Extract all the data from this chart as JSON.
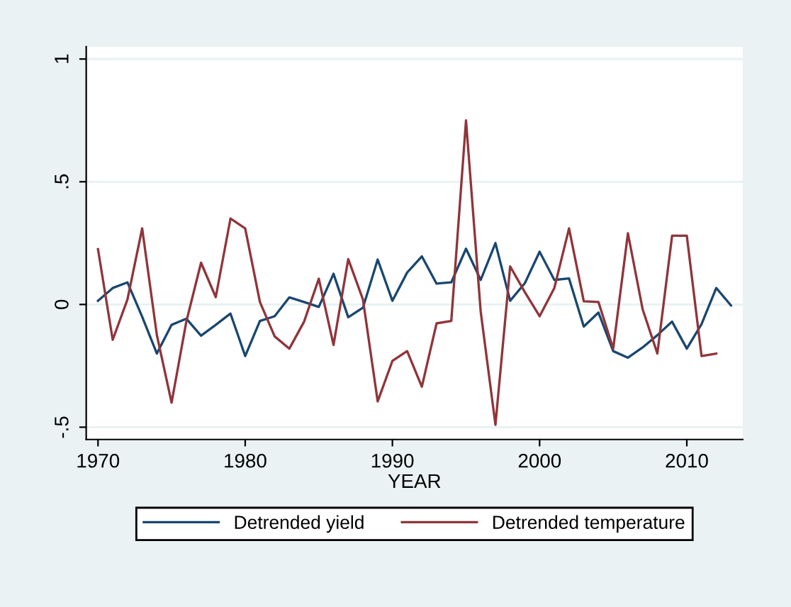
{
  "chart_data": {
    "type": "line",
    "xlabel": "YEAR",
    "x": [
      1970,
      1971,
      1972,
      1973,
      1974,
      1975,
      1976,
      1977,
      1978,
      1979,
      1980,
      1981,
      1982,
      1983,
      1984,
      1985,
      1986,
      1987,
      1988,
      1989,
      1990,
      1991,
      1992,
      1993,
      1994,
      1995,
      1996,
      1997,
      1998,
      1999,
      2000,
      2001,
      2002,
      2003,
      2004,
      2005,
      2006,
      2007,
      2008,
      2009,
      2010,
      2011,
      2012,
      2013
    ],
    "series": [
      {
        "name": "Detrended yield",
        "color": "#1a476f",
        "values": [
          0.015,
          0.067,
          0.09,
          -0.05,
          -0.2,
          -0.083,
          -0.058,
          -0.127,
          -0.083,
          -0.037,
          -0.21,
          -0.067,
          -0.048,
          0.029,
          0.01,
          -0.01,
          0.125,
          -0.052,
          -0.013,
          0.183,
          0.015,
          0.13,
          0.196,
          0.085,
          0.09,
          0.227,
          0.1,
          0.25,
          0.015,
          0.087,
          0.215,
          0.1,
          0.106,
          -0.09,
          -0.033,
          -0.19,
          -0.217,
          -0.175,
          -0.125,
          -0.07,
          -0.18,
          -0.08,
          0.067,
          -0.004
        ]
      },
      {
        "name": "Detrended temperature",
        "color": "#90353b",
        "values": [
          0.225,
          -0.144,
          0.02,
          0.31,
          -0.125,
          -0.4,
          -0.07,
          0.17,
          0.03,
          0.35,
          0.31,
          0.01,
          -0.13,
          -0.18,
          -0.07,
          0.105,
          -0.165,
          0.185,
          0.02,
          -0.395,
          -0.23,
          -0.19,
          -0.335,
          -0.077,
          -0.067,
          0.75,
          -0.03,
          -0.49,
          0.155,
          0.05,
          -0.048,
          0.067,
          0.31,
          0.013,
          0.01,
          -0.18,
          0.29,
          -0.02,
          -0.2,
          0.28,
          0.28,
          -0.21,
          -0.2,
          null
        ]
      }
    ],
    "xlim": [
      1969.2,
      2013.8
    ],
    "ylim": [
      -0.55,
      1.05
    ],
    "xticks": [
      1970,
      1980,
      1990,
      2000,
      2010
    ],
    "yticks": [
      {
        "value": -0.5,
        "label": "-.5"
      },
      0,
      {
        "value": 0.5,
        "label": ".5"
      },
      1
    ],
    "grid": "y",
    "legend": "bottom",
    "marker": "none",
    "line_style": "solid"
  }
}
